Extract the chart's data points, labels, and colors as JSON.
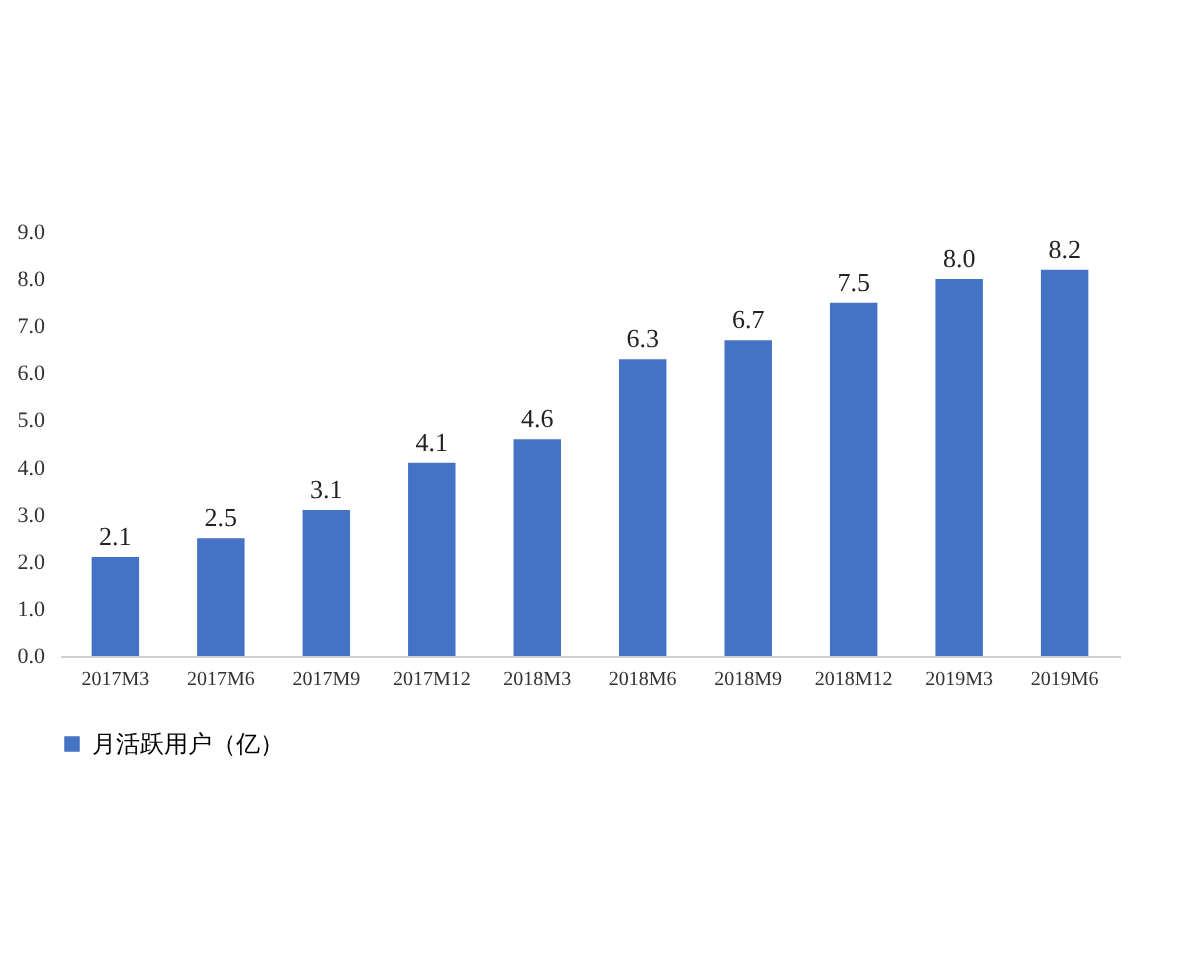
{
  "chart_data": {
    "type": "bar",
    "categories": [
      "2017M3",
      "2017M6",
      "2017M9",
      "2017M12",
      "2018M3",
      "2018M6",
      "2018M9",
      "2018M12",
      "2019M3",
      "2019M6"
    ],
    "series": [
      {
        "name": "月活跃用户（亿）",
        "color": "#4472c4",
        "values": [
          2.1,
          2.5,
          3.1,
          4.1,
          4.6,
          6.3,
          6.7,
          7.5,
          8.0,
          8.2
        ],
        "value_labels": [
          "2.1",
          "2.5",
          "3.1",
          "4.1",
          "4.6",
          "6.3",
          "6.7",
          "7.5",
          "8.0",
          "8.2"
        ]
      }
    ],
    "ylim": [
      0,
      9
    ],
    "yticks": [
      {
        "value": 0,
        "label": "0.0"
      },
      {
        "value": 1,
        "label": "1.0"
      },
      {
        "value": 2,
        "label": "2.0"
      },
      {
        "value": 3,
        "label": "3.0"
      },
      {
        "value": 4,
        "label": "4.0"
      },
      {
        "value": 5,
        "label": "5.0"
      },
      {
        "value": 6,
        "label": "6.0"
      },
      {
        "value": 7,
        "label": "7.0"
      },
      {
        "value": 8,
        "label": "8.0"
      },
      {
        "value": 9,
        "label": "9.0"
      }
    ],
    "grid": false,
    "legend": "bottom"
  }
}
